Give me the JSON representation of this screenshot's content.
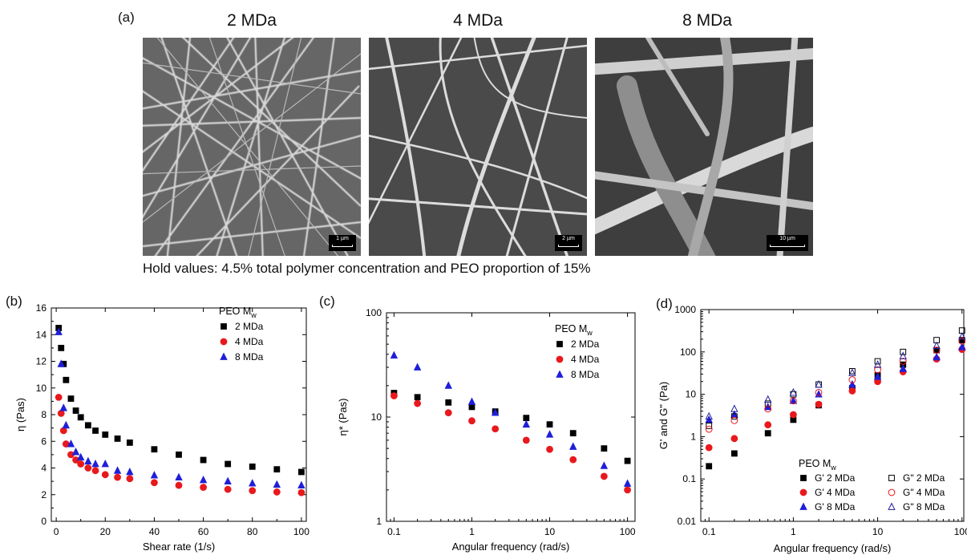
{
  "panel_a": {
    "label": "(a)",
    "images": [
      {
        "title": "2 MDa",
        "scale": "1 µm"
      },
      {
        "title": "4 MDa",
        "scale": "2 µm"
      },
      {
        "title": "8 MDa",
        "scale": "10 µm"
      }
    ],
    "caption": "Hold values: 4.5% total polymer concentration and PEO proportion of 15%"
  },
  "colors": {
    "black": "#000000",
    "red": "#e8191d",
    "blue": "#1f1fd9",
    "navy": "#1f1f9e"
  },
  "chart_data": [
    {
      "panel": "(b)",
      "type": "scatter",
      "xlabel": "Shear rate (1/s)",
      "ylabel": "η (Pas)",
      "xlim": [
        -2,
        102
      ],
      "ylim": [
        0,
        16
      ],
      "xticks": [
        0,
        20,
        40,
        60,
        80,
        100
      ],
      "yticks": [
        0,
        2,
        4,
        6,
        8,
        10,
        12,
        14,
        16
      ],
      "legend_title": "PEO M",
      "legend_title_sub": "w",
      "legend_position": "top-right",
      "series": [
        {
          "name": "2 MDa",
          "color": "#000000",
          "marker": "square",
          "x": [
            1,
            2,
            3,
            4,
            6,
            8,
            10,
            13,
            16,
            20,
            25,
            30,
            40,
            50,
            60,
            70,
            80,
            90,
            100
          ],
          "y": [
            14.5,
            13.0,
            11.8,
            10.6,
            9.2,
            8.3,
            7.8,
            7.2,
            6.8,
            6.5,
            6.2,
            5.9,
            5.4,
            5.0,
            4.6,
            4.3,
            4.1,
            3.9,
            3.7
          ]
        },
        {
          "name": "4 MDa",
          "color": "#e8191d",
          "marker": "circle",
          "x": [
            1,
            2,
            3,
            4,
            6,
            8,
            10,
            13,
            16,
            20,
            25,
            30,
            40,
            50,
            60,
            70,
            80,
            90,
            100
          ],
          "y": [
            9.3,
            8.1,
            6.8,
            5.8,
            5.0,
            4.6,
            4.3,
            4.0,
            3.8,
            3.5,
            3.3,
            3.2,
            2.9,
            2.7,
            2.55,
            2.4,
            2.3,
            2.2,
            2.15
          ]
        },
        {
          "name": "8 MDa",
          "color": "#1f1fd9",
          "marker": "triangle",
          "x": [
            1,
            2,
            3,
            4,
            6,
            8,
            10,
            13,
            16,
            20,
            25,
            30,
            40,
            50,
            60,
            70,
            80,
            90,
            100
          ],
          "y": [
            14.2,
            11.8,
            8.5,
            7.2,
            5.8,
            5.2,
            4.8,
            4.5,
            4.3,
            4.3,
            3.8,
            3.7,
            3.45,
            3.3,
            3.1,
            3.0,
            2.85,
            2.75,
            2.7
          ]
        }
      ]
    },
    {
      "panel": "(c)",
      "type": "scatter",
      "xlabel": "Angular frequency (rad/s)",
      "ylabel": "η* (Pas)",
      "xscale": "log",
      "yscale": "log",
      "xlim": [
        0.08,
        125
      ],
      "ylim": [
        1,
        100
      ],
      "xticks": [
        0.1,
        1,
        10,
        100
      ],
      "yticks": [
        1,
        10,
        100
      ],
      "legend_title": "PEO M",
      "legend_title_sub": "w",
      "legend_position": "top-right",
      "series": [
        {
          "name": "2 MDa",
          "color": "#000000",
          "marker": "square",
          "x": [
            0.1,
            0.2,
            0.5,
            1,
            2,
            5,
            10,
            20,
            50,
            100
          ],
          "y": [
            17,
            15.5,
            13.8,
            12.5,
            11.3,
            9.8,
            8.5,
            7.0,
            5.0,
            3.8
          ]
        },
        {
          "name": "4 MDa",
          "color": "#e8191d",
          "marker": "circle",
          "x": [
            0.1,
            0.2,
            0.5,
            1,
            2,
            5,
            10,
            20,
            50,
            100
          ],
          "y": [
            16,
            13.5,
            11.0,
            9.2,
            7.7,
            6.0,
            4.9,
            3.9,
            2.7,
            2.0
          ]
        },
        {
          "name": "8 MDa",
          "color": "#1f1fd9",
          "marker": "triangle",
          "x": [
            0.1,
            0.2,
            0.5,
            1,
            2,
            5,
            10,
            20,
            50,
            100
          ],
          "y": [
            39,
            30,
            20,
            14,
            11,
            8.5,
            6.8,
            5.2,
            3.4,
            2.3
          ]
        }
      ]
    },
    {
      "panel": "(d)",
      "type": "scatter",
      "xlabel": "Angular frequency (rad/s)",
      "ylabel": "G' and G\" (Pa)",
      "xscale": "log",
      "yscale": "log",
      "xlim": [
        0.08,
        105
      ],
      "ylim": [
        0.01,
        1000
      ],
      "xticks": [
        0.1,
        1,
        10,
        100
      ],
      "yticks": [
        0.01,
        0.1,
        1,
        10,
        100,
        1000
      ],
      "legend_title": "PEO M",
      "legend_title_sub": "w",
      "legend_position": "bottom-right",
      "series": [
        {
          "name": "G' 2 MDa",
          "color": "#000000",
          "marker": "square",
          "fill": true,
          "x": [
            0.1,
            0.2,
            0.5,
            1,
            2,
            5,
            10,
            20,
            50,
            100
          ],
          "y": [
            0.2,
            0.4,
            1.2,
            2.5,
            5.5,
            14,
            28,
            50,
            110,
            190
          ]
        },
        {
          "name": "G' 4 MDa",
          "color": "#e8191d",
          "marker": "circle",
          "fill": true,
          "x": [
            0.1,
            0.2,
            0.5,
            1,
            2,
            5,
            10,
            20,
            50,
            100
          ],
          "y": [
            0.55,
            0.9,
            1.9,
            3.3,
            5.8,
            12,
            20,
            34,
            68,
            115
          ]
        },
        {
          "name": "G' 8 MDa",
          "color": "#1f1fd9",
          "marker": "triangle",
          "fill": true,
          "x": [
            0.1,
            0.2,
            0.5,
            1,
            2,
            5,
            10,
            20,
            50,
            100
          ],
          "y": [
            2.5,
            3.3,
            5.0,
            7.0,
            10,
            17,
            26,
            40,
            75,
            130
          ]
        },
        {
          "name": "G\" 2 MDa",
          "color": "#000000",
          "marker": "square",
          "fill": false,
          "x": [
            0.1,
            0.2,
            0.5,
            1,
            2,
            5,
            10,
            20,
            50,
            100
          ],
          "y": [
            1.8,
            3.0,
            6.0,
            10,
            17,
            35,
            60,
            100,
            190,
            320
          ]
        },
        {
          "name": "G\" 4 MDa",
          "color": "#e8191d",
          "marker": "circle",
          "fill": false,
          "x": [
            0.1,
            0.2,
            0.5,
            1,
            2,
            5,
            10,
            20,
            50,
            100
          ],
          "y": [
            1.5,
            2.4,
            4.5,
            7.0,
            11,
            22,
            38,
            60,
            110,
            180
          ]
        },
        {
          "name": "G\" 8 MDa",
          "color": "#1f1f9e",
          "marker": "triangle",
          "fill": false,
          "x": [
            0.1,
            0.2,
            0.5,
            1,
            2,
            5,
            10,
            20,
            50,
            100
          ],
          "y": [
            3.0,
            4.5,
            7.5,
            11,
            17,
            32,
            50,
            80,
            140,
            230
          ]
        }
      ]
    }
  ]
}
